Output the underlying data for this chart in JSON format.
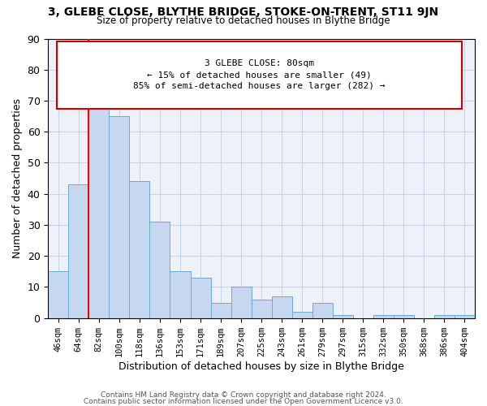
{
  "title": "3, GLEBE CLOSE, BLYTHE BRIDGE, STOKE-ON-TRENT, ST11 9JN",
  "subtitle": "Size of property relative to detached houses in Blythe Bridge",
  "xlabel": "Distribution of detached houses by size in Blythe Bridge",
  "ylabel": "Number of detached properties",
  "categories": [
    "46sqm",
    "64sqm",
    "82sqm",
    "100sqm",
    "118sqm",
    "136sqm",
    "153sqm",
    "171sqm",
    "189sqm",
    "207sqm",
    "225sqm",
    "243sqm",
    "261sqm",
    "279sqm",
    "297sqm",
    "315sqm",
    "332sqm",
    "350sqm",
    "368sqm",
    "386sqm",
    "404sqm"
  ],
  "values": [
    15,
    43,
    70,
    65,
    44,
    31,
    15,
    13,
    5,
    10,
    6,
    7,
    2,
    5,
    1,
    0,
    1,
    1,
    0,
    1,
    1
  ],
  "bar_color": "#c5d8f0",
  "bar_edgecolor": "#6aaad4",
  "redline_index": 2,
  "redline_label": "3 GLEBE CLOSE: 80sqm",
  "annotation_line1": "← 15% of detached houses are smaller (49)",
  "annotation_line2": "85% of semi-detached houses are larger (282) →",
  "box_edgecolor": "#cc0000",
  "ylim": [
    0,
    90
  ],
  "yticks": [
    0,
    10,
    20,
    30,
    40,
    50,
    60,
    70,
    80,
    90
  ],
  "grid_color": "#c8d4e8",
  "bg_color": "#eef2f8",
  "footer1": "Contains HM Land Registry data © Crown copyright and database right 2024.",
  "footer2": "Contains public sector information licensed under the Open Government Licence v3.0."
}
